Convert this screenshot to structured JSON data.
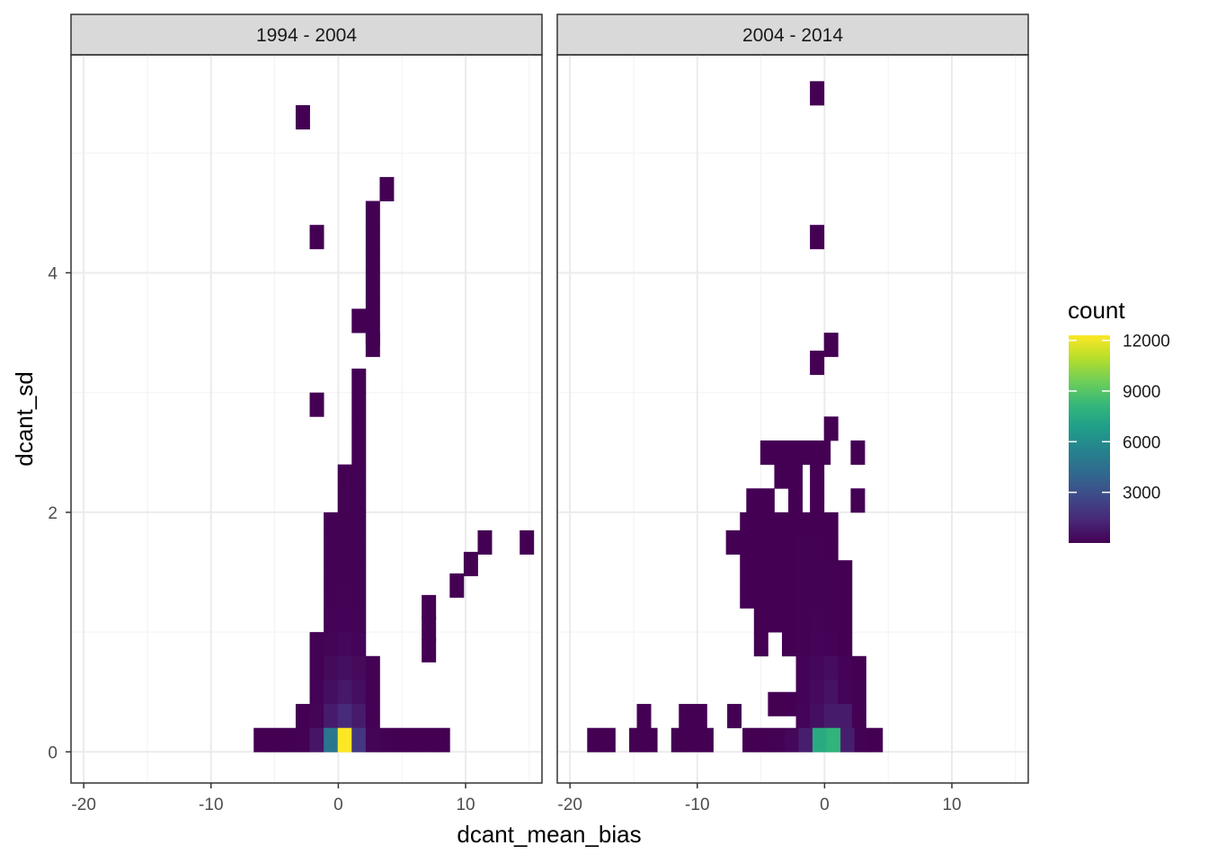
{
  "chart_data": {
    "type": "heatmap",
    "title": "",
    "xlabel": "dcant_mean_bias",
    "ylabel": "dcant_sd",
    "xlim": [
      -21,
      16
    ],
    "ylim": [
      -0.26,
      5.82
    ],
    "x_ticks": [
      -20,
      -10,
      0,
      10
    ],
    "x_tick_labels": [
      "-20",
      "-10",
      "0",
      "10"
    ],
    "y_ticks": [
      0,
      2,
      4
    ],
    "y_tick_labels": [
      "0",
      "2",
      "4"
    ],
    "grid": true,
    "bin_width_x": 1.1,
    "bin_width_y": 0.2,
    "legend": {
      "title": "count",
      "position": "right",
      "min": 0,
      "max": 12300,
      "breaks": [
        3000,
        6000,
        9000,
        12000
      ],
      "break_labels": [
        "3000",
        "6000",
        "9000",
        "12000"
      ],
      "colors": [
        "#440154",
        "#482878",
        "#3e4989",
        "#31688e",
        "#26828e",
        "#1f9e89",
        "#35b779",
        "#6ece58",
        "#b5de2b",
        "#fde725"
      ]
    },
    "facets": [
      {
        "label": "1994 - 2004",
        "bins": [
          {
            "x": -2.8,
            "y": 5.3,
            "count": 5
          },
          {
            "x": 3.8,
            "y": 4.7,
            "count": 5
          },
          {
            "x": 2.7,
            "y": 4.5,
            "count": 5
          },
          {
            "x": 2.7,
            "y": 4.3,
            "count": 5
          },
          {
            "x": -1.7,
            "y": 4.3,
            "count": 5
          },
          {
            "x": 2.7,
            "y": 4.1,
            "count": 5
          },
          {
            "x": 2.7,
            "y": 3.9,
            "count": 5
          },
          {
            "x": 2.7,
            "y": 3.7,
            "count": 5
          },
          {
            "x": 1.6,
            "y": 3.6,
            "count": 5
          },
          {
            "x": 2.7,
            "y": 3.5,
            "count": 5
          },
          {
            "x": 2.7,
            "y": 3.4,
            "count": 5
          },
          {
            "x": 1.6,
            "y": 3.1,
            "count": 5
          },
          {
            "x": 1.6,
            "y": 2.9,
            "count": 5
          },
          {
            "x": -1.7,
            "y": 2.9,
            "count": 5
          },
          {
            "x": 1.6,
            "y": 2.7,
            "count": 5
          },
          {
            "x": 1.6,
            "y": 2.5,
            "count": 10
          },
          {
            "x": 0.5,
            "y": 2.3,
            "count": 10
          },
          {
            "x": 1.6,
            "y": 2.3,
            "count": 20
          },
          {
            "x": 0.5,
            "y": 2.1,
            "count": 20
          },
          {
            "x": 1.6,
            "y": 2.1,
            "count": 20
          },
          {
            "x": -0.6,
            "y": 1.9,
            "count": 20
          },
          {
            "x": 0.5,
            "y": 1.9,
            "count": 30
          },
          {
            "x": 1.6,
            "y": 1.9,
            "count": 20
          },
          {
            "x": -0.6,
            "y": 1.7,
            "count": 30
          },
          {
            "x": 0.5,
            "y": 1.7,
            "count": 30
          },
          {
            "x": 1.6,
            "y": 1.7,
            "count": 30
          },
          {
            "x": 11.5,
            "y": 1.75,
            "count": 5
          },
          {
            "x": 14.8,
            "y": 1.75,
            "count": 5
          },
          {
            "x": 10.4,
            "y": 1.57,
            "count": 5
          },
          {
            "x": -0.6,
            "y": 1.5,
            "count": 40
          },
          {
            "x": 0.5,
            "y": 1.5,
            "count": 50
          },
          {
            "x": 1.6,
            "y": 1.5,
            "count": 40
          },
          {
            "x": 9.3,
            "y": 1.39,
            "count": 5
          },
          {
            "x": -0.6,
            "y": 1.3,
            "count": 50
          },
          {
            "x": 0.5,
            "y": 1.3,
            "count": 60
          },
          {
            "x": 1.6,
            "y": 1.3,
            "count": 50
          },
          {
            "x": 7.1,
            "y": 1.21,
            "count": 5
          },
          {
            "x": -0.6,
            "y": 1.1,
            "count": 60
          },
          {
            "x": 0.5,
            "y": 1.1,
            "count": 80
          },
          {
            "x": 1.6,
            "y": 1.1,
            "count": 60
          },
          {
            "x": 7.1,
            "y": 1.03,
            "count": 5
          },
          {
            "x": -1.7,
            "y": 0.9,
            "count": 20
          },
          {
            "x": -0.6,
            "y": 0.9,
            "count": 120
          },
          {
            "x": 0.5,
            "y": 0.9,
            "count": 200
          },
          {
            "x": 1.6,
            "y": 0.9,
            "count": 120
          },
          {
            "x": 7.1,
            "y": 0.85,
            "count": 5
          },
          {
            "x": -1.7,
            "y": 0.7,
            "count": 40
          },
          {
            "x": -0.6,
            "y": 0.7,
            "count": 300
          },
          {
            "x": 0.5,
            "y": 0.7,
            "count": 500
          },
          {
            "x": 1.6,
            "y": 0.7,
            "count": 300
          },
          {
            "x": 2.7,
            "y": 0.7,
            "count": 20
          },
          {
            "x": -1.7,
            "y": 0.5,
            "count": 60
          },
          {
            "x": -0.6,
            "y": 0.5,
            "count": 500
          },
          {
            "x": 0.5,
            "y": 0.5,
            "count": 800
          },
          {
            "x": 1.6,
            "y": 0.5,
            "count": 500
          },
          {
            "x": 2.7,
            "y": 0.5,
            "count": 30
          },
          {
            "x": -2.8,
            "y": 0.3,
            "count": 10
          },
          {
            "x": -1.7,
            "y": 0.3,
            "count": 100
          },
          {
            "x": -0.6,
            "y": 0.3,
            "count": 900
          },
          {
            "x": 0.5,
            "y": 0.3,
            "count": 1500
          },
          {
            "x": 1.6,
            "y": 0.3,
            "count": 900
          },
          {
            "x": 2.7,
            "y": 0.3,
            "count": 40
          },
          {
            "x": -6.1,
            "y": 0.1,
            "count": 5
          },
          {
            "x": -5.0,
            "y": 0.1,
            "count": 5
          },
          {
            "x": -3.9,
            "y": 0.1,
            "count": 10
          },
          {
            "x": -2.8,
            "y": 0.1,
            "count": 20
          },
          {
            "x": -1.7,
            "y": 0.1,
            "count": 700
          },
          {
            "x": -0.6,
            "y": 0.1,
            "count": 4800
          },
          {
            "x": 0.5,
            "y": 0.1,
            "count": 12300
          },
          {
            "x": 1.6,
            "y": 0.1,
            "count": 2000
          },
          {
            "x": 2.7,
            "y": 0.1,
            "count": 100
          },
          {
            "x": 3.8,
            "y": 0.1,
            "count": 20
          },
          {
            "x": 4.9,
            "y": 0.1,
            "count": 10
          },
          {
            "x": 6.0,
            "y": 0.1,
            "count": 5
          },
          {
            "x": 7.1,
            "y": 0.1,
            "count": 5
          },
          {
            "x": 8.2,
            "y": 0.1,
            "count": 5
          }
        ]
      },
      {
        "label": "2004 - 2014",
        "bins": [
          {
            "x": -0.6,
            "y": 5.5,
            "count": 5
          },
          {
            "x": -0.6,
            "y": 4.3,
            "count": 5
          },
          {
            "x": 0.5,
            "y": 3.4,
            "count": 5
          },
          {
            "x": -0.6,
            "y": 3.25,
            "count": 5
          },
          {
            "x": 0.5,
            "y": 2.7,
            "count": 5
          },
          {
            "x": -4.5,
            "y": 2.5,
            "count": 5
          },
          {
            "x": -3.4,
            "y": 2.5,
            "count": 5
          },
          {
            "x": -2.3,
            "y": 2.5,
            "count": 5
          },
          {
            "x": -1.2,
            "y": 2.5,
            "count": 5
          },
          {
            "x": -0.1,
            "y": 2.5,
            "count": 5
          },
          {
            "x": 2.6,
            "y": 2.5,
            "count": 5
          },
          {
            "x": -3.4,
            "y": 2.3,
            "count": 5
          },
          {
            "x": -2.3,
            "y": 2.3,
            "count": 5
          },
          {
            "x": -0.6,
            "y": 2.3,
            "count": 5
          },
          {
            "x": -5.6,
            "y": 2.1,
            "count": 5
          },
          {
            "x": -4.5,
            "y": 2.1,
            "count": 5
          },
          {
            "x": -2.3,
            "y": 2.1,
            "count": 5
          },
          {
            "x": -0.6,
            "y": 2.1,
            "count": 5
          },
          {
            "x": 2.6,
            "y": 2.1,
            "count": 5
          },
          {
            "x": -6.1,
            "y": 1.9,
            "count": 5
          },
          {
            "x": -5.0,
            "y": 1.9,
            "count": 5
          },
          {
            "x": -3.9,
            "y": 1.9,
            "count": 5
          },
          {
            "x": -2.8,
            "y": 1.9,
            "count": 5
          },
          {
            "x": -1.7,
            "y": 1.9,
            "count": 5
          },
          {
            "x": -0.6,
            "y": 1.9,
            "count": 5
          },
          {
            "x": 0.5,
            "y": 1.9,
            "count": 5
          },
          {
            "x": -7.2,
            "y": 1.75,
            "count": 5
          },
          {
            "x": -6.1,
            "y": 1.7,
            "count": 5
          },
          {
            "x": -5.0,
            "y": 1.7,
            "count": 5
          },
          {
            "x": -3.9,
            "y": 1.7,
            "count": 5
          },
          {
            "x": -2.8,
            "y": 1.7,
            "count": 10
          },
          {
            "x": -1.7,
            "y": 1.7,
            "count": 20
          },
          {
            "x": -0.6,
            "y": 1.7,
            "count": 20
          },
          {
            "x": 0.5,
            "y": 1.7,
            "count": 10
          },
          {
            "x": -6.1,
            "y": 1.5,
            "count": 5
          },
          {
            "x": -5.0,
            "y": 1.5,
            "count": 5
          },
          {
            "x": -3.9,
            "y": 1.5,
            "count": 5
          },
          {
            "x": -2.8,
            "y": 1.5,
            "count": 10
          },
          {
            "x": -1.7,
            "y": 1.5,
            "count": 20
          },
          {
            "x": -0.6,
            "y": 1.5,
            "count": 30
          },
          {
            "x": 0.5,
            "y": 1.5,
            "count": 20
          },
          {
            "x": 1.6,
            "y": 1.5,
            "count": 5
          },
          {
            "x": -6.1,
            "y": 1.3,
            "count": 5
          },
          {
            "x": -5.0,
            "y": 1.3,
            "count": 5
          },
          {
            "x": -3.9,
            "y": 1.3,
            "count": 5
          },
          {
            "x": -2.8,
            "y": 1.3,
            "count": 10
          },
          {
            "x": -1.7,
            "y": 1.3,
            "count": 30
          },
          {
            "x": -0.6,
            "y": 1.3,
            "count": 40
          },
          {
            "x": 0.5,
            "y": 1.3,
            "count": 30
          },
          {
            "x": 1.6,
            "y": 1.3,
            "count": 5
          },
          {
            "x": -5.0,
            "y": 1.1,
            "count": 5
          },
          {
            "x": -3.9,
            "y": 1.1,
            "count": 5
          },
          {
            "x": -2.8,
            "y": 1.1,
            "count": 10
          },
          {
            "x": -1.7,
            "y": 1.1,
            "count": 40
          },
          {
            "x": -0.6,
            "y": 1.1,
            "count": 60
          },
          {
            "x": 0.5,
            "y": 1.1,
            "count": 50
          },
          {
            "x": 1.6,
            "y": 1.1,
            "count": 10
          },
          {
            "x": -5.0,
            "y": 0.9,
            "count": 5
          },
          {
            "x": -2.8,
            "y": 0.9,
            "count": 5
          },
          {
            "x": -1.7,
            "y": 0.9,
            "count": 50
          },
          {
            "x": -0.6,
            "y": 0.9,
            "count": 100
          },
          {
            "x": 0.5,
            "y": 0.9,
            "count": 80
          },
          {
            "x": 1.6,
            "y": 0.9,
            "count": 10
          },
          {
            "x": -1.7,
            "y": 0.7,
            "count": 60
          },
          {
            "x": -0.6,
            "y": 0.7,
            "count": 200
          },
          {
            "x": 0.5,
            "y": 0.7,
            "count": 400
          },
          {
            "x": 1.6,
            "y": 0.7,
            "count": 60
          },
          {
            "x": 2.7,
            "y": 0.7,
            "count": 10
          },
          {
            "x": -1.7,
            "y": 0.5,
            "count": 80
          },
          {
            "x": -0.6,
            "y": 0.5,
            "count": 300
          },
          {
            "x": 0.5,
            "y": 0.5,
            "count": 600
          },
          {
            "x": 1.6,
            "y": 0.5,
            "count": 100
          },
          {
            "x": 2.7,
            "y": 0.5,
            "count": 20
          },
          {
            "x": -3.9,
            "y": 0.4,
            "count": 5
          },
          {
            "x": -2.8,
            "y": 0.4,
            "count": 10
          },
          {
            "x": -1.7,
            "y": 0.3,
            "count": 100
          },
          {
            "x": -0.6,
            "y": 0.3,
            "count": 500
          },
          {
            "x": 0.5,
            "y": 0.3,
            "count": 900
          },
          {
            "x": 1.6,
            "y": 0.3,
            "count": 900
          },
          {
            "x": 2.7,
            "y": 0.3,
            "count": 30
          },
          {
            "x": -18.1,
            "y": 0.1,
            "count": 5
          },
          {
            "x": -17.0,
            "y": 0.1,
            "count": 5
          },
          {
            "x": -14.8,
            "y": 0.1,
            "count": 5
          },
          {
            "x": -13.7,
            "y": 0.1,
            "count": 5
          },
          {
            "x": -11.5,
            "y": 0.1,
            "count": 5
          },
          {
            "x": -10.4,
            "y": 0.1,
            "count": 5
          },
          {
            "x": -9.3,
            "y": 0.1,
            "count": 5
          },
          {
            "x": -5.9,
            "y": 0.1,
            "count": 5
          },
          {
            "x": -4.8,
            "y": 0.1,
            "count": 5
          },
          {
            "x": -3.7,
            "y": 0.1,
            "count": 20
          },
          {
            "x": -2.6,
            "y": 0.1,
            "count": 200
          },
          {
            "x": -1.5,
            "y": 0.1,
            "count": 1000
          },
          {
            "x": -0.4,
            "y": 0.1,
            "count": 7500
          },
          {
            "x": 0.7,
            "y": 0.1,
            "count": 8000
          },
          {
            "x": 1.8,
            "y": 0.1,
            "count": 1000
          },
          {
            "x": 2.9,
            "y": 0.1,
            "count": 30
          },
          {
            "x": 4.0,
            "y": 0.1,
            "count": 5
          },
          {
            "x": -14.2,
            "y": 0.3,
            "count": 5
          },
          {
            "x": -10.9,
            "y": 0.3,
            "count": 5
          },
          {
            "x": -9.8,
            "y": 0.3,
            "count": 5
          },
          {
            "x": -7.1,
            "y": 0.3,
            "count": 5
          }
        ]
      }
    ]
  }
}
